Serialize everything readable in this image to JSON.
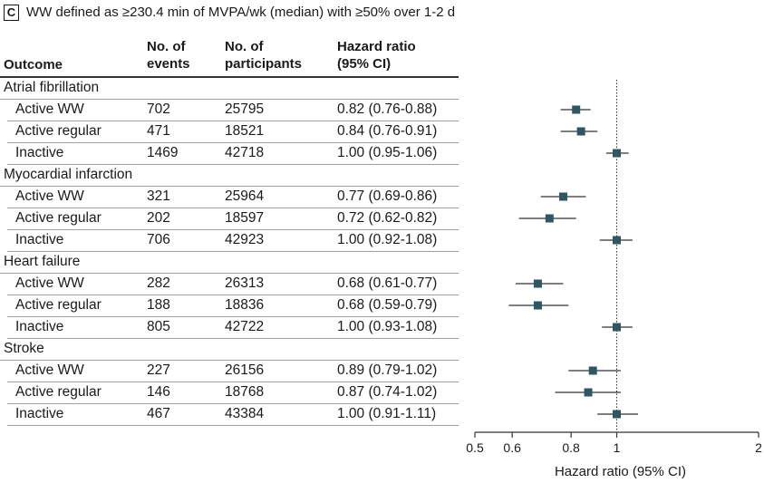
{
  "panel_letter": "C",
  "title": "WW defined as ≥230.4 min of MVPA/wk (median) with ≥50% over 1-2 d",
  "headers": {
    "outcome": "Outcome",
    "events": [
      "No. of",
      "events"
    ],
    "participants": [
      "No. of",
      "participants"
    ],
    "hazard_ratio": [
      "Hazard ratio",
      "(95% CI)"
    ]
  },
  "chart_data": {
    "type": "forest",
    "xscale": "log",
    "xlim": [
      0.5,
      2
    ],
    "xticks": [
      "0.5",
      "0.6",
      "0.8",
      "1",
      "2"
    ],
    "xtick_values": [
      0.5,
      0.6,
      0.8,
      1,
      2
    ],
    "reference_line": 1,
    "xlabel": "Hazard ratio (95% CI)",
    "marker_color": "#2e5763",
    "groups": [
      {
        "outcome": "Atrial fibrillation",
        "rows": [
          {
            "label": "Active WW",
            "events": "702",
            "participants": "25795",
            "hr_text": "0.82 (0.76-0.88)",
            "hr": 0.82,
            "lo": 0.76,
            "hi": 0.88
          },
          {
            "label": "Active regular",
            "events": "471",
            "participants": "18521",
            "hr_text": "0.84 (0.76-0.91)",
            "hr": 0.84,
            "lo": 0.76,
            "hi": 0.91
          },
          {
            "label": "Inactive",
            "events": "1469",
            "participants": "42718",
            "hr_text": "1.00 (0.95-1.06)",
            "hr": 1.0,
            "lo": 0.95,
            "hi": 1.06
          }
        ]
      },
      {
        "outcome": "Myocardial infarction",
        "rows": [
          {
            "label": "Active WW",
            "events": "321",
            "participants": "25964",
            "hr_text": "0.77 (0.69-0.86)",
            "hr": 0.77,
            "lo": 0.69,
            "hi": 0.86
          },
          {
            "label": "Active regular",
            "events": "202",
            "participants": "18597",
            "hr_text": "0.72 (0.62-0.82)",
            "hr": 0.72,
            "lo": 0.62,
            "hi": 0.82
          },
          {
            "label": "Inactive",
            "events": "706",
            "participants": "42923",
            "hr_text": "1.00 (0.92-1.08)",
            "hr": 1.0,
            "lo": 0.92,
            "hi": 1.08
          }
        ]
      },
      {
        "outcome": "Heart failure",
        "rows": [
          {
            "label": "Active WW",
            "events": "282",
            "participants": "26313",
            "hr_text": "0.68 (0.61-0.77)",
            "hr": 0.68,
            "lo": 0.61,
            "hi": 0.77
          },
          {
            "label": "Active regular",
            "events": "188",
            "participants": "18836",
            "hr_text": "0.68 (0.59-0.79)",
            "hr": 0.68,
            "lo": 0.59,
            "hi": 0.79
          },
          {
            "label": "Inactive",
            "events": "805",
            "participants": "42722",
            "hr_text": "1.00 (0.93-1.08)",
            "hr": 1.0,
            "lo": 0.93,
            "hi": 1.08
          }
        ]
      },
      {
        "outcome": "Stroke",
        "rows": [
          {
            "label": "Active WW",
            "events": "227",
            "participants": "26156",
            "hr_text": "0.89 (0.79-1.02)",
            "hr": 0.89,
            "lo": 0.79,
            "hi": 1.02
          },
          {
            "label": "Active regular",
            "events": "146",
            "participants": "18768",
            "hr_text": "0.87 (0.74-1.02)",
            "hr": 0.87,
            "lo": 0.74,
            "hi": 1.02
          },
          {
            "label": "Inactive",
            "events": "467",
            "participants": "43384",
            "hr_text": "1.00 (0.91-1.11)",
            "hr": 1.0,
            "lo": 0.91,
            "hi": 1.11
          }
        ]
      }
    ]
  }
}
